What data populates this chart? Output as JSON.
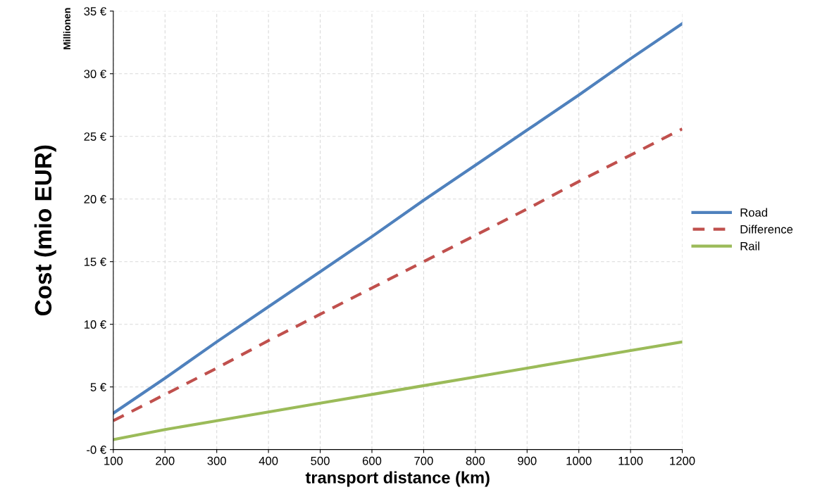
{
  "chart_data": {
    "type": "line",
    "xlabel": "transport distance (km)",
    "ylabel": "Cost (mio EUR)",
    "annotations": [
      "Millionen"
    ],
    "x": [
      100,
      200,
      300,
      400,
      500,
      600,
      700,
      800,
      900,
      1000,
      1100,
      1200
    ],
    "series": [
      {
        "name": "Road",
        "color": "#4f81bd",
        "line_style": "solid",
        "values": [
          2.9,
          5.7,
          8.6,
          11.4,
          14.2,
          17.0,
          19.9,
          22.7,
          25.5,
          28.3,
          31.2,
          34.0
        ]
      },
      {
        "name": "Difference",
        "color": "#c0504d",
        "line_style": "dashed",
        "values": [
          2.3,
          4.4,
          6.5,
          8.7,
          10.8,
          12.9,
          15.0,
          17.1,
          19.2,
          21.4,
          23.5,
          25.6
        ]
      },
      {
        "name": "Rail",
        "color": "#9bbb59",
        "line_style": "solid",
        "values": [
          0.8,
          1.6,
          2.3,
          3.0,
          3.7,
          4.4,
          5.1,
          5.8,
          6.5,
          7.2,
          7.9,
          8.6
        ]
      }
    ],
    "xlim": [
      100,
      1200
    ],
    "xticks": [
      100,
      200,
      300,
      400,
      500,
      600,
      700,
      800,
      900,
      1000,
      1100,
      1200
    ],
    "ylim": [
      0,
      35
    ],
    "yticks": [
      {
        "value": 0,
        "label": "-0 €"
      },
      {
        "value": 5,
        "label": "5 €"
      },
      {
        "value": 10,
        "label": "10 €"
      },
      {
        "value": 15,
        "label": "15 €"
      },
      {
        "value": 20,
        "label": "20 €"
      },
      {
        "value": 25,
        "label": "25 €"
      },
      {
        "value": 30,
        "label": "30 €"
      },
      {
        "value": 35,
        "label": "35 €"
      }
    ],
    "grid": true,
    "legend": "right",
    "marker": "none"
  }
}
